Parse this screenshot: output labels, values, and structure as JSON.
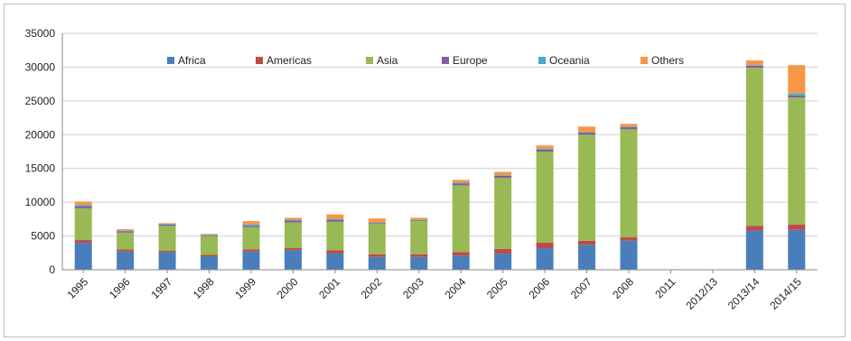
{
  "chart_data": {
    "type": "bar",
    "stacked": true,
    "title": "",
    "xlabel": "",
    "ylabel": "",
    "ylim": [
      0,
      35000
    ],
    "yticks": [
      "0",
      "5000",
      "10000",
      "15000",
      "20000",
      "25000",
      "30000",
      "35000"
    ],
    "grid": true,
    "legend_position": "top",
    "categories": [
      "1995",
      "1996",
      "1997",
      "1998",
      "1999",
      "2000",
      "2001",
      "2002",
      "2003",
      "2004",
      "2005",
      "2006",
      "2007",
      "2008",
      "2011",
      "2012/13",
      "2013/14",
      "2014/15"
    ],
    "series": [
      {
        "name": "Africa",
        "color": "#4a7ebb",
        "values": [
          4000,
          2700,
          2600,
          2000,
          2700,
          2900,
          2400,
          1900,
          1900,
          2100,
          2400,
          3200,
          3700,
          4300,
          0,
          0,
          5800,
          5900
        ]
      },
      {
        "name": "Americas",
        "color": "#be4b48",
        "values": [
          400,
          300,
          200,
          200,
          300,
          300,
          500,
          400,
          400,
          500,
          700,
          800,
          600,
          500,
          0,
          0,
          700,
          800
        ]
      },
      {
        "name": "Asia",
        "color": "#98b954",
        "values": [
          4700,
          2500,
          3700,
          2800,
          3300,
          3800,
          4200,
          4500,
          4900,
          9900,
          10500,
          13500,
          15700,
          16000,
          0,
          0,
          23400,
          18800
        ]
      },
      {
        "name": "Europe",
        "color": "#7d60a0",
        "values": [
          300,
          200,
          200,
          100,
          200,
          300,
          300,
          100,
          100,
          300,
          300,
          300,
          300,
          300,
          0,
          0,
          300,
          300
        ]
      },
      {
        "name": "Oceania",
        "color": "#46aac5",
        "values": [
          200,
          100,
          100,
          100,
          200,
          100,
          100,
          100,
          100,
          100,
          100,
          100,
          100,
          100,
          0,
          0,
          100,
          300
        ]
      },
      {
        "name": "Others",
        "color": "#f79646",
        "values": [
          500,
          200,
          100,
          100,
          500,
          300,
          700,
          600,
          300,
          400,
          500,
          500,
          800,
          400,
          0,
          0,
          700,
          4200
        ]
      }
    ]
  }
}
